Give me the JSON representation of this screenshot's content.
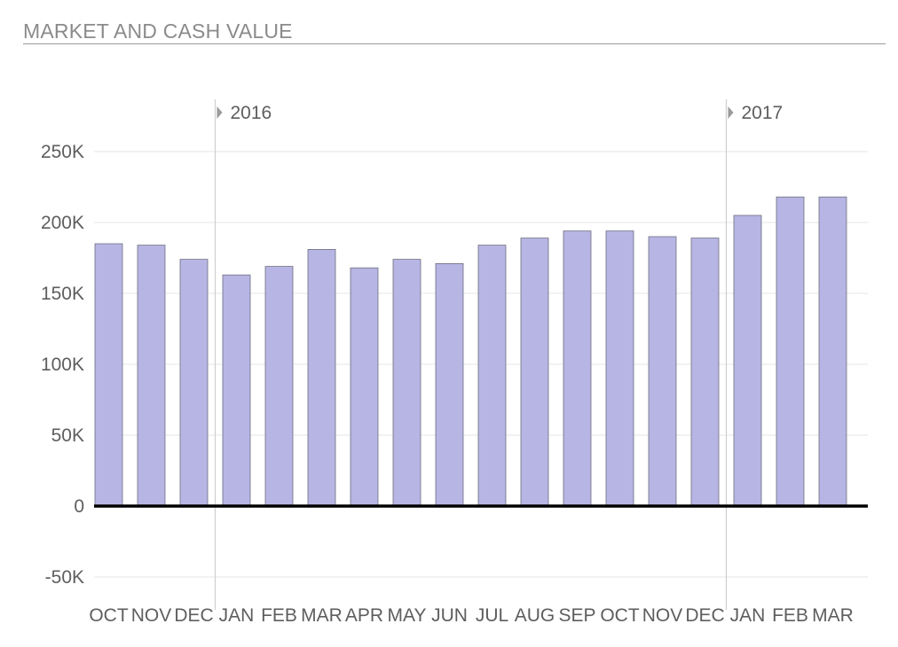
{
  "header": {
    "title": "MARKET AND CASH VALUE"
  },
  "chart_data": {
    "type": "bar",
    "title": "MARKET AND CASH VALUE",
    "xlabel": "",
    "ylabel": "",
    "categories": [
      "OCT",
      "NOV",
      "DEC",
      "JAN",
      "FEB",
      "MAR",
      "APR",
      "MAY",
      "JUN",
      "JUL",
      "AUG",
      "SEP",
      "OCT",
      "NOV",
      "DEC",
      "JAN",
      "FEB",
      "MAR"
    ],
    "values": [
      185000,
      184000,
      174000,
      163000,
      169000,
      181000,
      168000,
      174000,
      171000,
      184000,
      189000,
      194000,
      194000,
      190000,
      189000,
      205000,
      218000,
      218000
    ],
    "ylim": [
      -50000,
      250000
    ],
    "yticks": [
      250000,
      200000,
      150000,
      100000,
      50000,
      0,
      -50000
    ],
    "ytick_labels": [
      "250K",
      "200K",
      "150K",
      "100K",
      "50K",
      "0",
      "-50K"
    ],
    "year_markers": [
      {
        "label": "2016",
        "before_index": 3
      },
      {
        "label": "2017",
        "before_index": 15
      }
    ],
    "bar_color": "#b6b5e3",
    "grid": true
  }
}
